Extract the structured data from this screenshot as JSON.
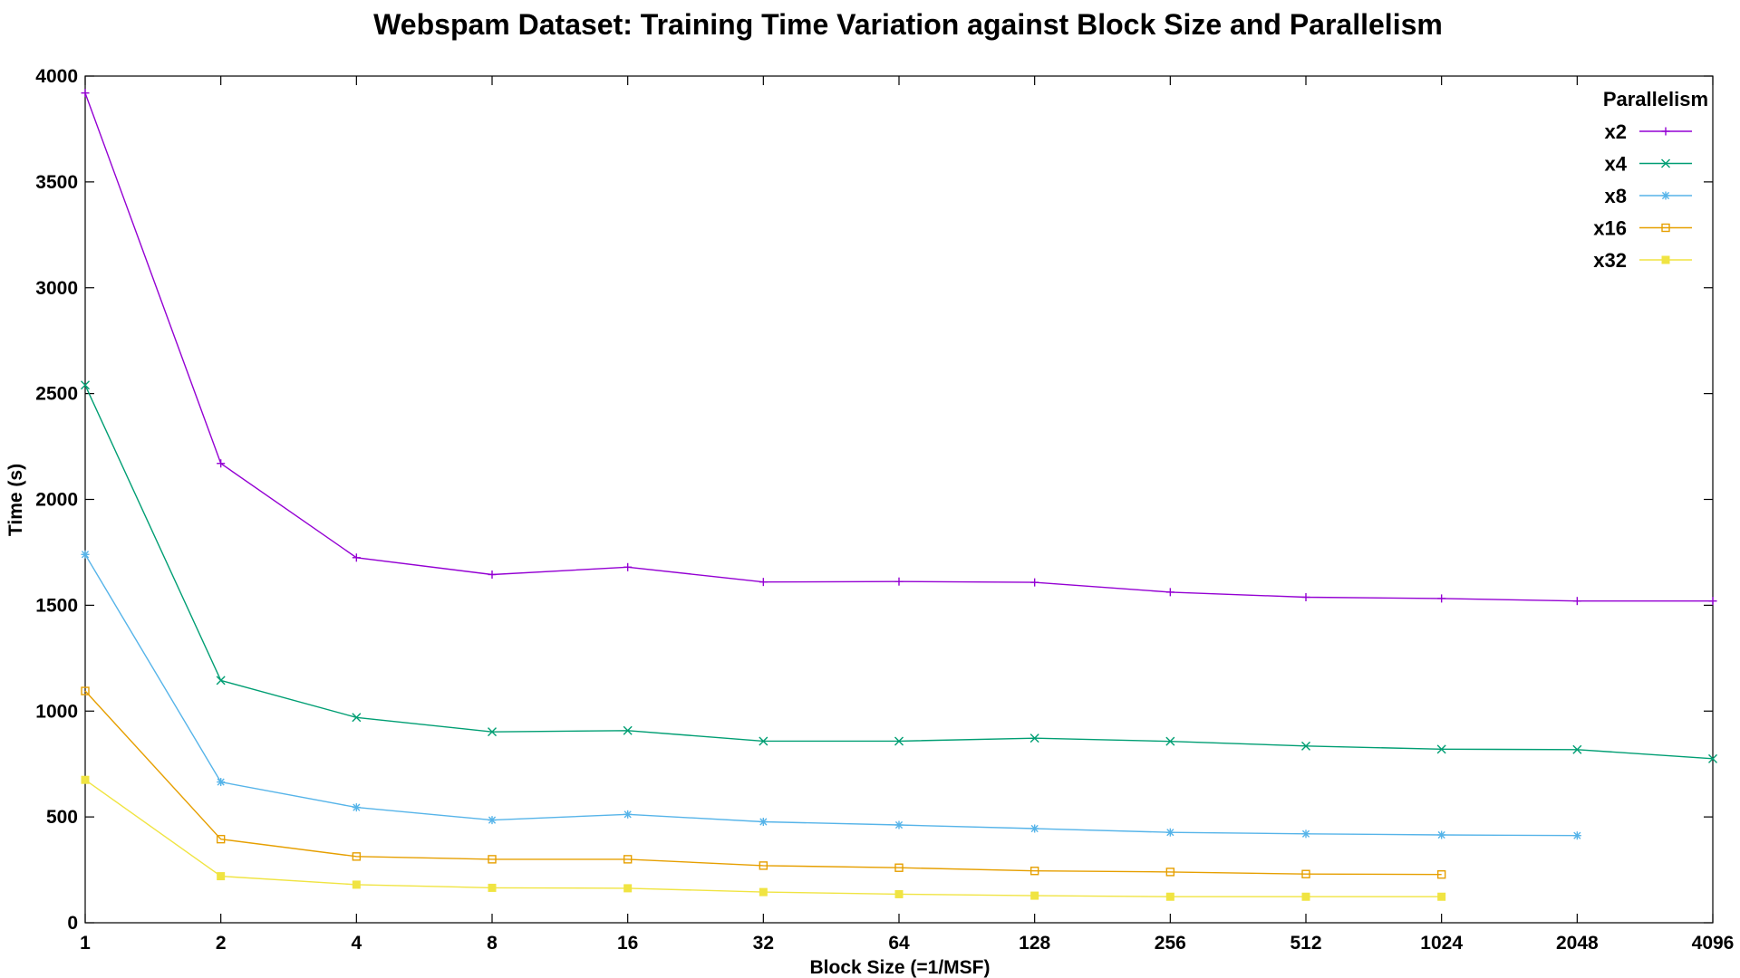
{
  "chart_data": {
    "type": "line",
    "title": "Webspam Dataset: Training Time Variation against Block Size and Parallelism",
    "xlabel": "Block Size (=1/MSF)",
    "ylabel": "Time (s)",
    "x_scale": "log2",
    "x": [
      1,
      2,
      4,
      8,
      16,
      32,
      64,
      128,
      256,
      512,
      1024,
      2048,
      4096
    ],
    "x_tick_labels": [
      "1",
      "2",
      "4",
      "8",
      "16",
      "32",
      "64",
      "128",
      "256",
      "512",
      "1024",
      "2048",
      "4096"
    ],
    "ylim": [
      0,
      4000
    ],
    "y_ticks": [
      0,
      500,
      1000,
      1500,
      2000,
      2500,
      3000,
      3500,
      4000
    ],
    "grid": false,
    "legend": {
      "title": "Parallelism",
      "placement": "top-right"
    },
    "series": [
      {
        "name": "x2",
        "color": "#9400d3",
        "marker": "plus",
        "values": [
          3920,
          2170,
          1725,
          1645,
          1680,
          1610,
          1612,
          1608,
          1562,
          1538,
          1532,
          1520,
          1520
        ]
      },
      {
        "name": "x4",
        "color": "#009e73",
        "marker": "cross",
        "values": [
          2540,
          1145,
          970,
          902,
          908,
          858,
          858,
          872,
          857,
          835,
          820,
          818,
          775
        ]
      },
      {
        "name": "x8",
        "color": "#56b4e9",
        "marker": "star",
        "values": [
          1740,
          665,
          545,
          485,
          512,
          477,
          462,
          445,
          427,
          420,
          415,
          412,
          null
        ]
      },
      {
        "name": "x16",
        "color": "#e69f00",
        "marker": "open-square",
        "values": [
          1095,
          395,
          313,
          300,
          300,
          270,
          260,
          245,
          240,
          230,
          228,
          null,
          null
        ]
      },
      {
        "name": "x32",
        "color": "#f0e442",
        "marker": "filled-square",
        "values": [
          675,
          220,
          180,
          165,
          163,
          145,
          135,
          128,
          123,
          123,
          123,
          null,
          null
        ]
      }
    ]
  }
}
